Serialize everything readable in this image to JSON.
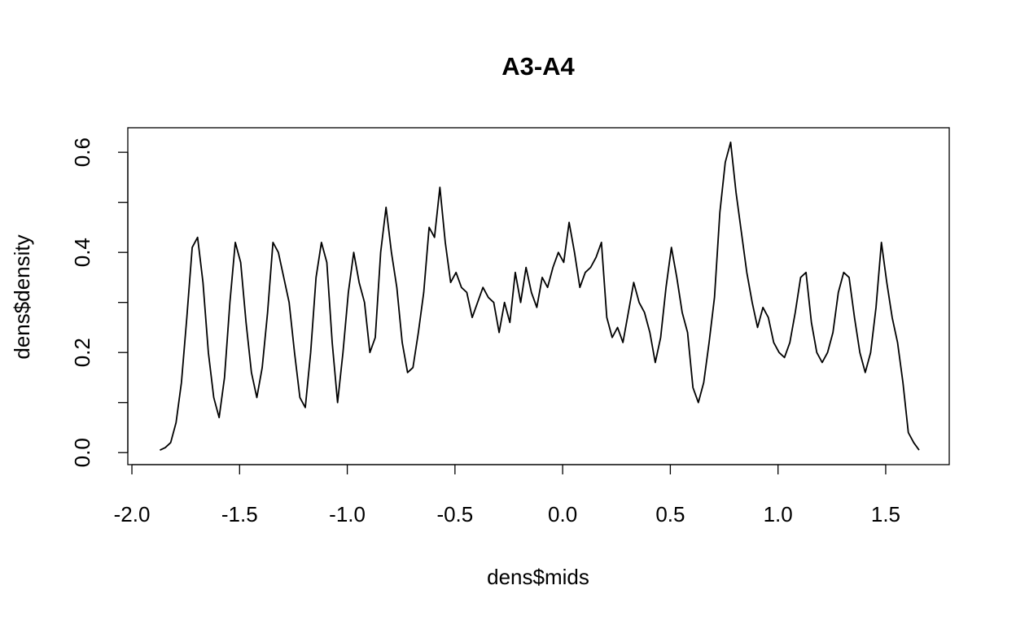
{
  "chart_data": {
    "type": "line",
    "title": "A3-A4",
    "x_label": "dens$mids",
    "y_label": "dens$density",
    "x": [
      -1.87,
      -1.845,
      -1.82,
      -1.795,
      -1.77,
      -1.745,
      -1.72,
      -1.695,
      -1.67,
      -1.645,
      -1.62,
      -1.595,
      -1.57,
      -1.545,
      -1.52,
      -1.495,
      -1.47,
      -1.445,
      -1.42,
      -1.395,
      -1.37,
      -1.345,
      -1.32,
      -1.295,
      -1.27,
      -1.245,
      -1.22,
      -1.195,
      -1.17,
      -1.145,
      -1.12,
      -1.095,
      -1.07,
      -1.045,
      -1.02,
      -0.995,
      -0.97,
      -0.945,
      -0.92,
      -0.895,
      -0.87,
      -0.845,
      -0.82,
      -0.795,
      -0.77,
      -0.745,
      -0.72,
      -0.695,
      -0.67,
      -0.645,
      -0.62,
      -0.595,
      -0.57,
      -0.545,
      -0.52,
      -0.495,
      -0.47,
      -0.445,
      -0.42,
      -0.395,
      -0.37,
      -0.345,
      -0.32,
      -0.295,
      -0.27,
      -0.245,
      -0.22,
      -0.195,
      -0.17,
      -0.145,
      -0.12,
      -0.095,
      -0.07,
      -0.045,
      -0.02,
      0.005,
      0.03,
      0.055,
      0.08,
      0.105,
      0.13,
      0.155,
      0.18,
      0.205,
      0.23,
      0.255,
      0.28,
      0.305,
      0.33,
      0.355,
      0.38,
      0.405,
      0.43,
      0.455,
      0.48,
      0.505,
      0.53,
      0.555,
      0.58,
      0.605,
      0.63,
      0.655,
      0.68,
      0.705,
      0.73,
      0.755,
      0.78,
      0.805,
      0.83,
      0.855,
      0.88,
      0.905,
      0.93,
      0.955,
      0.98,
      1.005,
      1.03,
      1.055,
      1.08,
      1.105,
      1.13,
      1.155,
      1.18,
      1.205,
      1.23,
      1.255,
      1.28,
      1.305,
      1.33,
      1.355,
      1.38,
      1.405,
      1.43,
      1.455,
      1.48,
      1.505,
      1.53,
      1.555,
      1.58,
      1.605,
      1.63,
      1.655
    ],
    "values": [
      0.005,
      0.01,
      0.02,
      0.06,
      0.14,
      0.27,
      0.41,
      0.43,
      0.34,
      0.2,
      0.11,
      0.07,
      0.15,
      0.3,
      0.42,
      0.38,
      0.26,
      0.16,
      0.11,
      0.17,
      0.28,
      0.42,
      0.4,
      0.35,
      0.3,
      0.2,
      0.11,
      0.09,
      0.2,
      0.35,
      0.42,
      0.38,
      0.22,
      0.1,
      0.2,
      0.32,
      0.4,
      0.34,
      0.3,
      0.2,
      0.23,
      0.4,
      0.49,
      0.4,
      0.33,
      0.22,
      0.16,
      0.17,
      0.24,
      0.32,
      0.45,
      0.43,
      0.53,
      0.42,
      0.34,
      0.36,
      0.33,
      0.32,
      0.27,
      0.3,
      0.33,
      0.31,
      0.3,
      0.24,
      0.3,
      0.26,
      0.36,
      0.3,
      0.37,
      0.32,
      0.29,
      0.35,
      0.33,
      0.37,
      0.4,
      0.38,
      0.46,
      0.4,
      0.33,
      0.36,
      0.37,
      0.39,
      0.42,
      0.27,
      0.23,
      0.25,
      0.22,
      0.28,
      0.34,
      0.3,
      0.28,
      0.24,
      0.18,
      0.23,
      0.33,
      0.41,
      0.35,
      0.28,
      0.24,
      0.13,
      0.1,
      0.14,
      0.22,
      0.31,
      0.48,
      0.58,
      0.62,
      0.52,
      0.44,
      0.36,
      0.3,
      0.25,
      0.29,
      0.27,
      0.22,
      0.2,
      0.19,
      0.22,
      0.28,
      0.35,
      0.36,
      0.26,
      0.2,
      0.18,
      0.2,
      0.24,
      0.32,
      0.36,
      0.35,
      0.27,
      0.2,
      0.16,
      0.2,
      0.29,
      0.42,
      0.34,
      0.27,
      0.22,
      0.14,
      0.04,
      0.02,
      0.005
    ],
    "color": "#000000",
    "xlim": [
      -2.019,
      1.795
    ],
    "ylim": [
      -0.024,
      0.649
    ],
    "xticks": [
      {
        "value": -2,
        "label": "-2.0"
      },
      -1.5,
      {
        "value": -1,
        "label": "-1.0"
      },
      -0.5,
      {
        "value": 0,
        "label": "0.0"
      },
      0.5,
      {
        "value": 1,
        "label": "1.0"
      },
      1.5
    ],
    "yticks": [
      {
        "value": 0,
        "label": "0.0"
      },
      0.2,
      0.4,
      0.6
    ],
    "yminorticks": [
      0.1,
      0.3,
      0.5
    ]
  }
}
